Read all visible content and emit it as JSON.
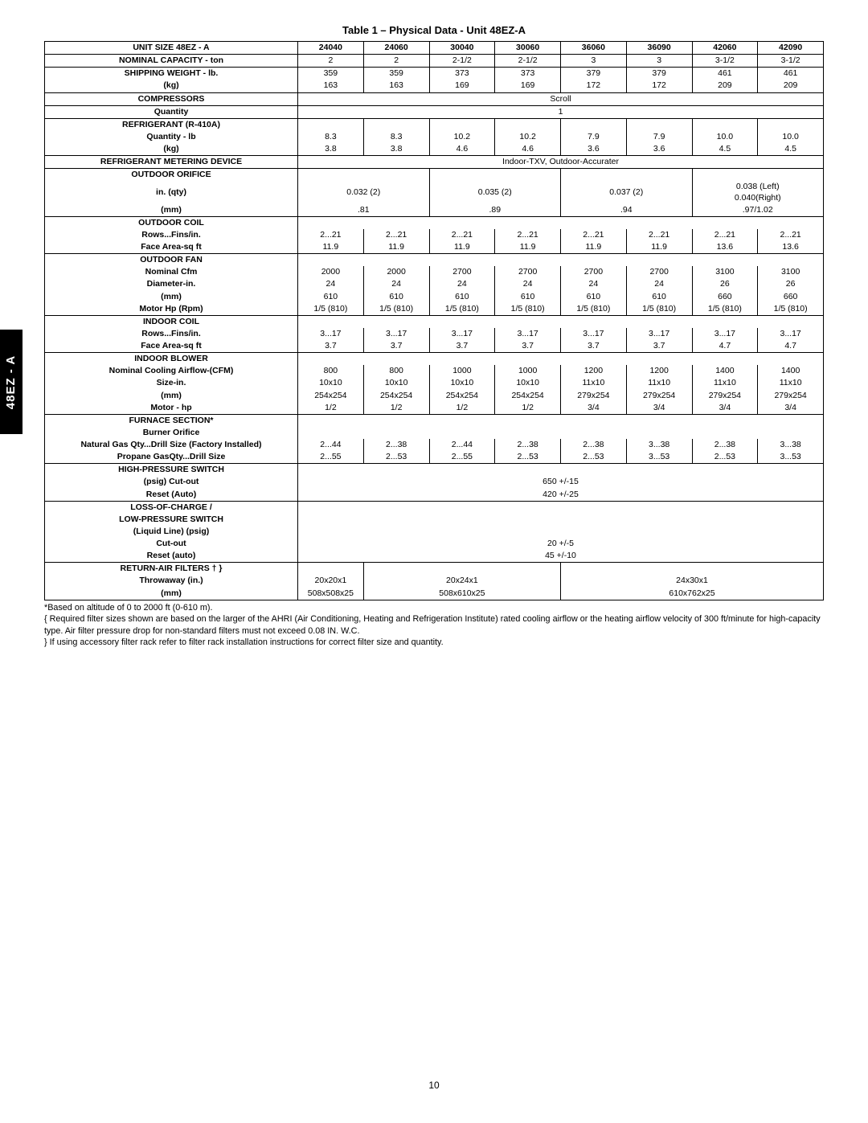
{
  "sideTab": "48EZ - A",
  "title": "Table 1 – Physical Data - Unit 48EZ-A",
  "pageNum": "10",
  "headers": [
    "UNIT SIZE 48EZ - A",
    "24040",
    "24060",
    "30040",
    "30060",
    "36060",
    "36090",
    "42060",
    "42090"
  ],
  "rows": {
    "nominal_cap": {
      "label": "NOMINAL CAPACITY - ton",
      "vals": [
        "2",
        "2",
        "2-1/2",
        "2-1/2",
        "3",
        "3",
        "3-1/2",
        "3-1/2"
      ]
    },
    "ship_lb": {
      "label": "SHIPPING WEIGHT - lb.",
      "vals": [
        "359",
        "359",
        "373",
        "373",
        "379",
        "379",
        "461",
        "461"
      ]
    },
    "ship_kg": {
      "label": "(kg)",
      "vals": [
        "163",
        "163",
        "169",
        "169",
        "172",
        "172",
        "209",
        "209"
      ]
    },
    "compressors": {
      "label": "COMPRESSORS",
      "span": "Scroll"
    },
    "comp_qty": {
      "label": "Quantity",
      "span": "1"
    },
    "refrig_hdr": {
      "label": "REFRIGERANT (R-410A)"
    },
    "refrig_lb": {
      "label": "Quantity - lb",
      "vals": [
        "8.3",
        "8.3",
        "10.2",
        "10.2",
        "7.9",
        "7.9",
        "10.0",
        "10.0"
      ]
    },
    "refrig_kg": {
      "label": "(kg)",
      "vals": [
        "3.8",
        "3.8",
        "4.6",
        "4.6",
        "3.6",
        "3.6",
        "4.5",
        "4.5"
      ]
    },
    "meter": {
      "label": "REFRIGERANT METERING DEVICE",
      "span": "Indoor-TXV, Outdoor-Accurater"
    },
    "orifice_hdr": {
      "label": "OUTDOOR ORIFICE"
    },
    "orifice_in": {
      "label": "in.  (qty)",
      "pair": [
        "0.032  (2)",
        "0.035  (2)",
        "0.037 (2)"
      ],
      "last": "0.038  (Left)\n0.040(Right)"
    },
    "orifice_mm": {
      "label": "(mm)",
      "pair": [
        ".81",
        ".89",
        ".94"
      ],
      "last": ".97/1.02"
    },
    "ocoil_hdr": {
      "label": "OUTDOOR COIL"
    },
    "ocoil_rows": {
      "label": "Rows...Fins/in.",
      "vals": [
        "2...21",
        "2...21",
        "2...21",
        "2...21",
        "2...21",
        "2...21",
        "2...21",
        "2...21"
      ]
    },
    "ocoil_area": {
      "label": "Face Area-sq ft",
      "vals": [
        "11.9",
        "11.9",
        "11.9",
        "11.9",
        "11.9",
        "11.9",
        "13.6",
        "13.6"
      ]
    },
    "ofan_hdr": {
      "label": "OUTDOOR FAN"
    },
    "ofan_cfm": {
      "label": "Nominal Cfm",
      "vals": [
        "2000",
        "2000",
        "2700",
        "2700",
        "2700",
        "2700",
        "3100",
        "3100"
      ]
    },
    "ofan_dia": {
      "label": "Diameter-in.",
      "vals": [
        "24",
        "24",
        "24",
        "24",
        "24",
        "24",
        "26",
        "26"
      ]
    },
    "ofan_mm": {
      "label": "(mm)",
      "vals": [
        "610",
        "610",
        "610",
        "610",
        "610",
        "610",
        "660",
        "660"
      ]
    },
    "ofan_hp": {
      "label": "Motor Hp (Rpm)",
      "vals": [
        "1/5 (810)",
        "1/5 (810)",
        "1/5 (810)",
        "1/5 (810)",
        "1/5 (810)",
        "1/5 (810)",
        "1/5 (810)",
        "1/5 (810)"
      ]
    },
    "icoil_hdr": {
      "label": "INDOOR COIL"
    },
    "icoil_rows": {
      "label": "Rows...Fins/in.",
      "vals": [
        "3...17",
        "3...17",
        "3...17",
        "3...17",
        "3...17",
        "3...17",
        "3...17",
        "3...17"
      ]
    },
    "icoil_area": {
      "label": "Face Area-sq ft",
      "vals": [
        "3.7",
        "3.7",
        "3.7",
        "3.7",
        "3.7",
        "3.7",
        "4.7",
        "4.7"
      ]
    },
    "iblow_hdr": {
      "label": "INDOOR BLOWER"
    },
    "iblow_cfm": {
      "label": "Nominal  Cooling Airflow-(CFM)",
      "vals": [
        "800",
        "800",
        "1000",
        "1000",
        "1200",
        "1200",
        "1400",
        "1400"
      ]
    },
    "iblow_size": {
      "label": "Size-in.",
      "vals": [
        "10x10",
        "10x10",
        "10x10",
        "10x10",
        "11x10",
        "11x10",
        "11x10",
        "11x10"
      ]
    },
    "iblow_mm": {
      "label": "(mm)",
      "vals": [
        "254x254",
        "254x254",
        "254x254",
        "254x254",
        "279x254",
        "279x254",
        "279x254",
        "279x254"
      ]
    },
    "iblow_hp": {
      "label": "Motor - hp",
      "vals": [
        "1/2",
        "1/2",
        "1/2",
        "1/2",
        "3/4",
        "3/4",
        "3/4",
        "3/4"
      ]
    },
    "furn_hdr": {
      "label": "FURNACE SECTION*"
    },
    "burner_hdr": {
      "label": "Burner Orifice"
    },
    "natgas": {
      "label": "Natural Gas Qty...Drill Size (Factory  Installed)",
      "vals": [
        "2...44",
        "2...38",
        "2...44",
        "2...38",
        "2...38",
        "3...38",
        "2...38",
        "3...38"
      ]
    },
    "propane": {
      "label": "Propane GasQty...Drill Size",
      "vals": [
        "2...55",
        "2...53",
        "2...55",
        "2...53",
        "2...53",
        "3...53",
        "2...53",
        "3...53"
      ]
    },
    "hps_hdr": {
      "label": "HIGH-PRESSURE SWITCH"
    },
    "hps_cut": {
      "label": "(psig) Cut-out",
      "span": "650 +/-15"
    },
    "hps_reset": {
      "label": "Reset (Auto)",
      "span": "420 +/-25"
    },
    "lps_hdr": {
      "label": "LOSS-OF-CHARGE /"
    },
    "lps_hdr2": {
      "label": "LOW-PRESSURE SWITCH"
    },
    "lps_line": {
      "label": "(Liquid Line) (psig)"
    },
    "lps_cut": {
      "label": "Cut-out",
      "span": "20 +/-5"
    },
    "lps_reset": {
      "label": "Reset (auto)",
      "span": "45 +/-10"
    },
    "filter_hdr": {
      "label": "RETURN-AIR FILTERS † }"
    },
    "filter_in": {
      "label": "Throwaway  (in.)",
      "triple": [
        "20x20x1",
        "20x24x1",
        "24x30x1"
      ]
    },
    "filter_mm": {
      "label": "(mm)",
      "triple": [
        "508x508x25",
        "508x610x25",
        "610x762x25"
      ]
    }
  },
  "footnotes": [
    "*Based on altitude of 0 to 2000 ft (0-610 m).",
    "{ Required filter sizes shown are based on the larger of the AHRI (Air Conditioning, Heating and Refrigeration Institute) rated cooling airflow or the heating airflow velocity of 300 ft/minute for high-capacity type. Air filter pressure drop for non-standard filters must not exceed 0.08 IN. W.C.",
    "}  If using accessory filter rack refer to filter rack installation instructions for correct filter size and quantity."
  ]
}
